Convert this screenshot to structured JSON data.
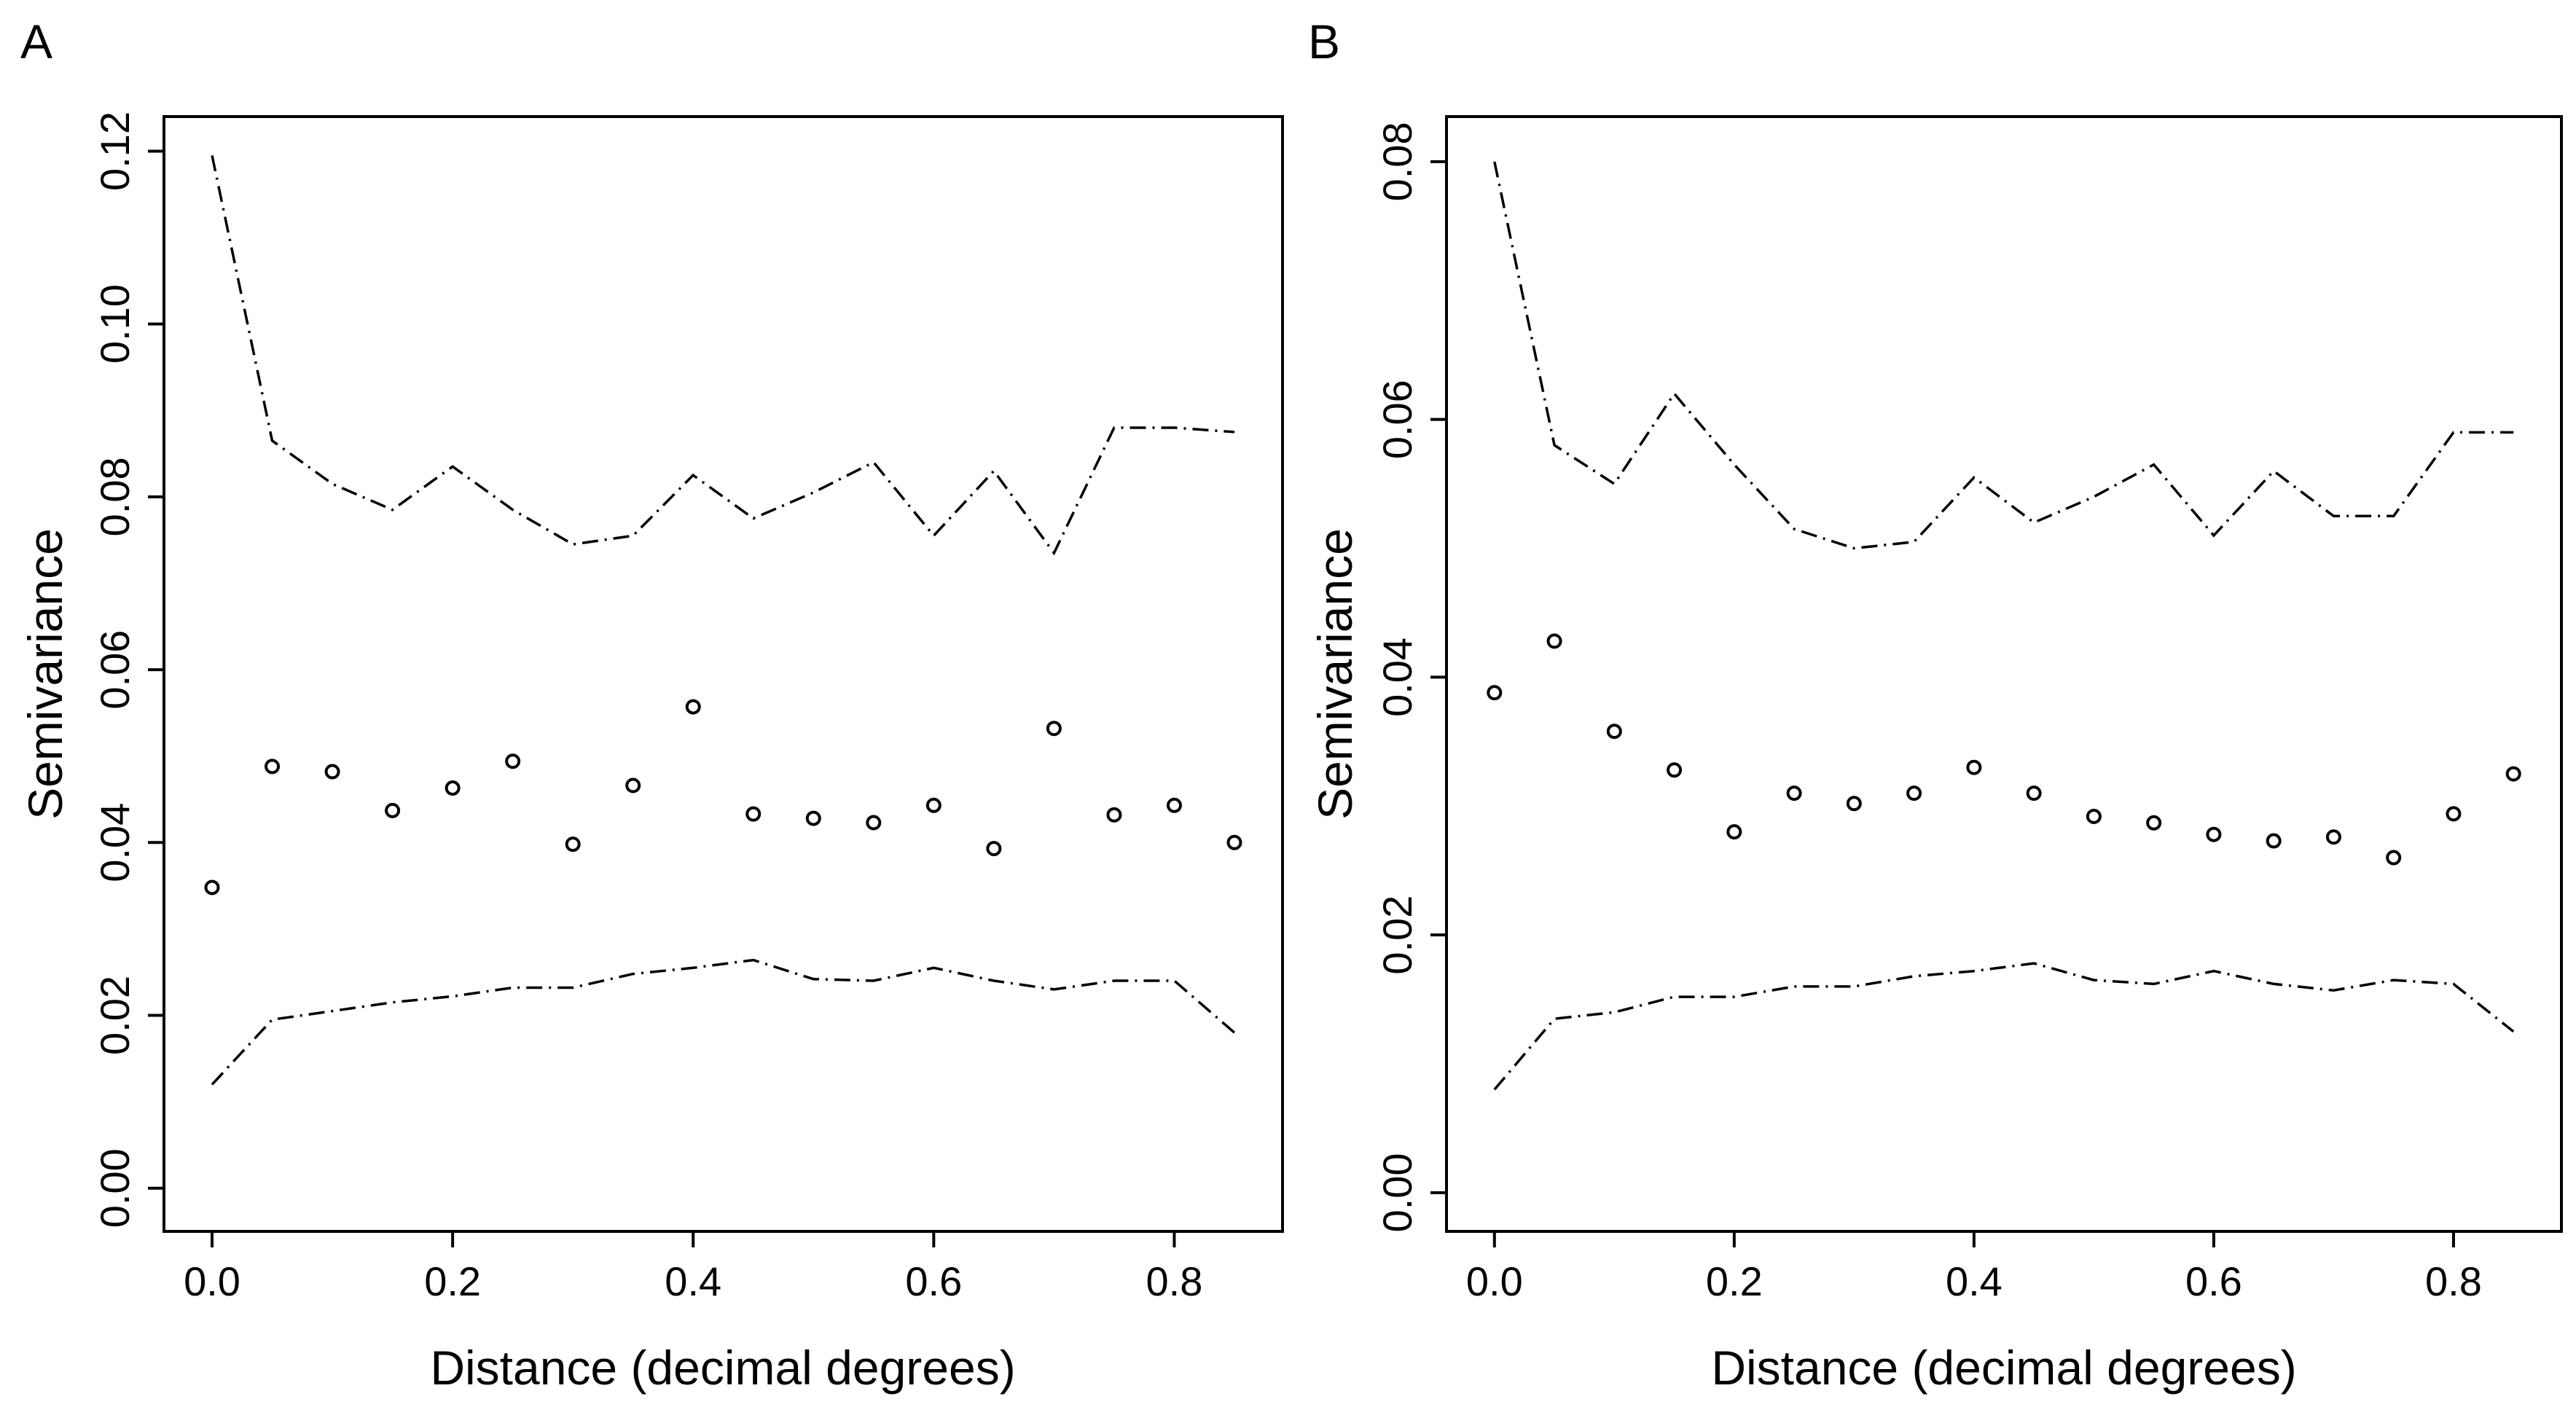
{
  "chart_data": [
    {
      "panel_label": "A",
      "type": "scatter",
      "xlabel": "Distance (decimal degrees)",
      "ylabel": "Semivariance",
      "xlim": [
        -0.04,
        0.89
      ],
      "ylim": [
        -0.005,
        0.124
      ],
      "x_ticks": [
        0.0,
        0.2,
        0.4,
        0.6,
        0.8
      ],
      "x_tick_labels": [
        "0.0",
        "0.2",
        "0.4",
        "0.6",
        "0.8"
      ],
      "y_ticks": [
        0.0,
        0.02,
        0.04,
        0.06,
        0.08,
        0.1,
        0.12
      ],
      "y_tick_labels": [
        "0.00",
        "0.02",
        "0.04",
        "0.06",
        "0.08",
        "0.10",
        "0.12"
      ],
      "x": [
        0.0,
        0.05,
        0.1,
        0.15,
        0.2,
        0.25,
        0.3,
        0.35,
        0.4,
        0.45,
        0.5,
        0.55,
        0.6,
        0.65,
        0.7,
        0.75,
        0.8,
        0.85
      ],
      "series": [
        {
          "name": "semivariance",
          "style": "points",
          "values": [
            0.0348,
            0.0488,
            0.0482,
            0.0437,
            0.0463,
            0.0494,
            0.0398,
            0.0466,
            0.0557,
            0.0433,
            0.0428,
            0.0423,
            0.0443,
            0.0393,
            0.0532,
            0.0432,
            0.0443,
            0.04
          ]
        },
        {
          "name": "upper envelope",
          "style": "dashdot",
          "values": [
            0.1195,
            0.0865,
            0.0815,
            0.0785,
            0.0835,
            0.0785,
            0.0745,
            0.0755,
            0.0825,
            0.0775,
            0.0805,
            0.084,
            0.0755,
            0.083,
            0.0735,
            0.088,
            0.088,
            0.0875
          ]
        },
        {
          "name": "lower envelope",
          "style": "dashdot",
          "values": [
            0.012,
            0.0195,
            0.0205,
            0.0215,
            0.0222,
            0.0232,
            0.0232,
            0.0248,
            0.0255,
            0.0264,
            0.0242,
            0.024,
            0.0255,
            0.024,
            0.023,
            0.024,
            0.024,
            0.018
          ]
        }
      ]
    },
    {
      "panel_label": "B",
      "type": "scatter",
      "xlabel": "Distance (decimal degrees)",
      "ylabel": "Semivariance",
      "xlim": [
        -0.04,
        0.89
      ],
      "ylim": [
        -0.003,
        0.0835
      ],
      "x_ticks": [
        0.0,
        0.2,
        0.4,
        0.6,
        0.8
      ],
      "x_tick_labels": [
        "0.0",
        "0.2",
        "0.4",
        "0.6",
        "0.8"
      ],
      "y_ticks": [
        0.0,
        0.02,
        0.04,
        0.06,
        0.08
      ],
      "y_tick_labels": [
        "0.00",
        "0.02",
        "0.04",
        "0.06",
        "0.08"
      ],
      "x": [
        0.0,
        0.05,
        0.1,
        0.15,
        0.2,
        0.25,
        0.3,
        0.35,
        0.4,
        0.45,
        0.5,
        0.55,
        0.6,
        0.65,
        0.7,
        0.75,
        0.8,
        0.85
      ],
      "series": [
        {
          "name": "semivariance",
          "style": "points",
          "values": [
            0.0388,
            0.0428,
            0.0358,
            0.0328,
            0.028,
            0.031,
            0.0302,
            0.031,
            0.033,
            0.031,
            0.0292,
            0.0287,
            0.0278,
            0.0273,
            0.0276,
            0.026,
            0.0294,
            0.0325
          ]
        },
        {
          "name": "upper envelope",
          "style": "dashdot",
          "values": [
            0.08,
            0.058,
            0.055,
            0.062,
            0.0565,
            0.0515,
            0.05,
            0.0505,
            0.0555,
            0.052,
            0.054,
            0.0565,
            0.051,
            0.056,
            0.0525,
            0.0525,
            0.059,
            0.059
          ]
        },
        {
          "name": "lower envelope",
          "style": "dashdot",
          "values": [
            0.008,
            0.0135,
            0.014,
            0.0152,
            0.0152,
            0.016,
            0.016,
            0.0168,
            0.0172,
            0.0178,
            0.0165,
            0.0162,
            0.0172,
            0.0162,
            0.0157,
            0.0165,
            0.0162,
            0.0125
          ]
        }
      ]
    }
  ]
}
